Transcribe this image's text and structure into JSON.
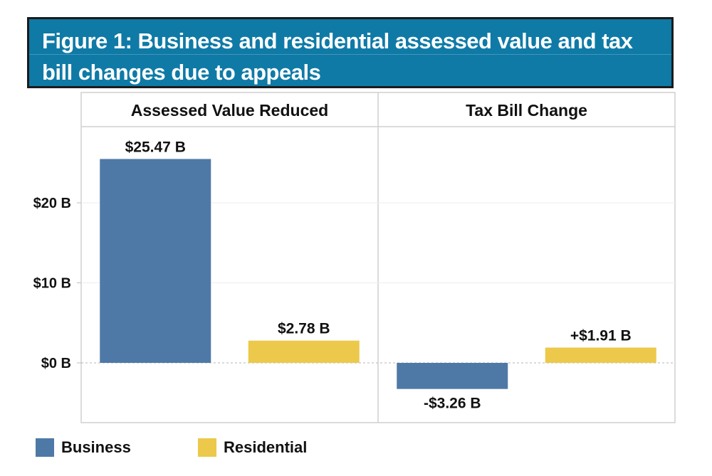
{
  "title": "Figure 1: Business and residential assessed value and tax bill changes due to appeals",
  "chart_data": {
    "type": "bar",
    "title": "Figure 1: Business and residential assessed value and tax bill changes due to appeals",
    "panels": [
      {
        "title": "Assessed Value Reduced",
        "categories": [
          "Business",
          "Residential"
        ],
        "values": [
          25.47,
          2.78
        ],
        "labels": [
          "$25.47 B",
          "$2.78 B"
        ]
      },
      {
        "title": "Tax Bill Change",
        "categories": [
          "Business",
          "Residential"
        ],
        "values": [
          -3.26,
          1.91
        ],
        "labels": [
          "-$3.26 B",
          "+$1.91 B"
        ]
      }
    ],
    "series": [
      {
        "name": "Business",
        "color": "#4e79a7"
      },
      {
        "name": "Residential",
        "color": "#ecc94b"
      }
    ],
    "yticks": [
      0,
      10,
      20
    ],
    "ytick_labels": [
      "$0 B",
      "$10 B",
      "$20 B"
    ],
    "ylim": [
      -6.3,
      29
    ],
    "units": "billions of dollars",
    "legend_position": "bottom-left"
  },
  "legend": {
    "business": "Business",
    "residential": "Residential"
  }
}
